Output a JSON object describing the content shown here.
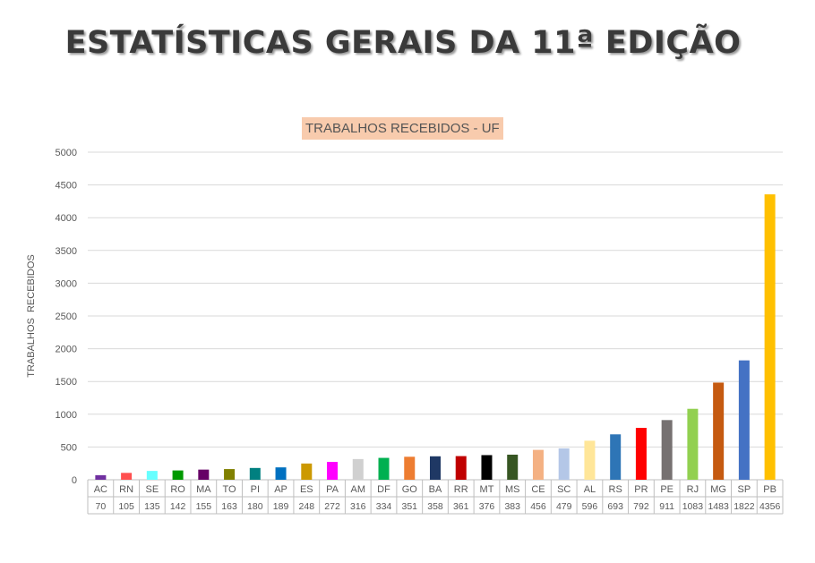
{
  "page_title": "ESTATÍSTICAS GERAIS DA 11ª EDIÇÃO",
  "chart_data": {
    "type": "bar",
    "title": "TRABALHOS RECEBIDOS - UF",
    "title_background": "#f8cbad",
    "xlabel": "",
    "ylabel": "TRABALHOS  RECEBIDOS",
    "ylim": [
      0,
      5000
    ],
    "yticks": [
      0,
      500,
      1000,
      1500,
      2000,
      2500,
      3000,
      3500,
      4000,
      4500,
      5000
    ],
    "grid": true,
    "legend": "none",
    "data_table": true,
    "categories": [
      "AC",
      "RN",
      "SE",
      "RO",
      "MA",
      "TO",
      "PI",
      "AP",
      "ES",
      "PA",
      "AM",
      "DF",
      "GO",
      "BA",
      "RR",
      "MT",
      "MS",
      "CE",
      "SC",
      "AL",
      "RS",
      "PR",
      "PE",
      "RJ",
      "MG",
      "SP",
      "PB"
    ],
    "values": [
      70,
      105,
      135,
      142,
      155,
      163,
      180,
      189,
      248,
      272,
      316,
      334,
      351,
      358,
      361,
      376,
      383,
      456,
      479,
      596,
      693,
      792,
      911,
      1083,
      1483,
      1822,
      4356
    ],
    "colors": [
      "#7030a0",
      "#ff5050",
      "#66ffff",
      "#009900",
      "#660066",
      "#808000",
      "#008080",
      "#0070c0",
      "#cc9900",
      "#ff00ff",
      "#d0d0d0",
      "#00b050",
      "#ed7d31",
      "#1f3864",
      "#c00000",
      "#000000",
      "#375623",
      "#f4b183",
      "#b4c7e7",
      "#ffe699",
      "#2e75b6",
      "#ff0000",
      "#767171",
      "#92d050",
      "#c55a11",
      "#4472c4",
      "#ffc000"
    ]
  }
}
